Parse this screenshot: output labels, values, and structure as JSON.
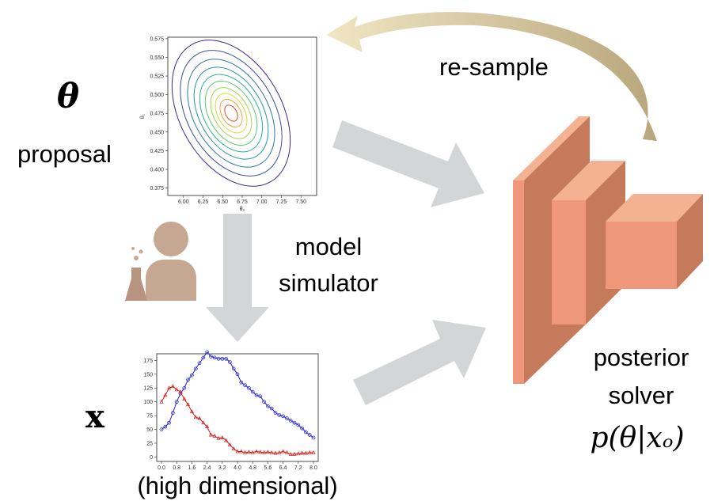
{
  "labels": {
    "theta": "θ",
    "proposal": "proposal",
    "resample": "re-sample",
    "model": "model",
    "simulator": "simulator",
    "x": "x",
    "high_dim": "(high dimensional)",
    "posterior": "posterior",
    "solver": "solver",
    "formula": "p(θ|xₒ)"
  },
  "chart_data": [
    {
      "type": "contour",
      "x_label": "θ₀",
      "y_label": "θ₁",
      "xlim": [
        5.8,
        7.7
      ],
      "ylim": [
        0.365,
        0.577
      ],
      "xticks": [
        {
          "value": 6,
          "label": "6.00"
        },
        {
          "value": 6.25,
          "label": "6.25"
        },
        {
          "value": 6.5,
          "label": "6.50"
        },
        {
          "value": 6.75,
          "label": "6.75"
        },
        {
          "value": 7,
          "label": "7.00"
        },
        {
          "value": 7.25,
          "label": "7.25"
        },
        {
          "value": 7.5,
          "label": "7.50"
        }
      ],
      "yticks": [
        {
          "value": 0.375,
          "label": "0.375"
        },
        {
          "value": 0.4,
          "label": "0.400"
        },
        {
          "value": 0.425,
          "label": "0.425"
        },
        {
          "value": 0.45,
          "label": "0.450"
        },
        {
          "value": 0.475,
          "label": "0.475"
        },
        {
          "value": 0.5,
          "label": "0.500"
        },
        {
          "value": 0.525,
          "label": "0.525"
        },
        {
          "value": 0.55,
          "label": "0.550"
        },
        {
          "value": 0.575,
          "label": "0.575"
        }
      ]
    },
    {
      "type": "line",
      "xlim": [
        -0.25,
        8.25
      ],
      "ylim": [
        -8,
        187
      ],
      "xticks": [
        {
          "value": 0,
          "label": "0.0"
        },
        0.8,
        1.6,
        2.4,
        3.2,
        {
          "value": 4,
          "label": "4.0"
        },
        4.8,
        5.6,
        6.4,
        7.2,
        {
          "value": 8,
          "label": "8.0"
        }
      ],
      "yticks": [
        0,
        25,
        50,
        75,
        100,
        125,
        150,
        175
      ],
      "x": [
        0,
        0.2,
        0.4,
        0.6,
        0.8,
        1.0,
        1.2,
        1.4,
        1.6,
        1.8,
        2.0,
        2.2,
        2.4,
        2.6,
        2.8,
        3.0,
        3.2,
        3.4,
        3.6,
        3.8,
        4.0,
        4.2,
        4.4,
        4.6,
        4.8,
        5.0,
        5.2,
        5.4,
        5.6,
        5.8,
        6.0,
        6.2,
        6.4,
        6.6,
        6.8,
        7.0,
        7.2,
        7.4,
        7.6,
        7.8,
        8.0
      ],
      "series": [
        {
          "color": "#2020d0",
          "marker": "circle",
          "values": [
            50,
            55,
            62,
            80,
            100,
            115,
            125,
            140,
            148,
            160,
            170,
            180,
            190,
            182,
            180,
            178,
            178,
            178,
            172,
            160,
            150,
            135,
            130,
            125,
            118,
            112,
            110,
            100,
            92,
            88,
            80,
            76,
            74,
            70,
            66,
            62,
            58,
            52,
            45,
            40,
            35
          ]
        },
        {
          "color": "#d02020",
          "marker": "triangle",
          "values": [
            100,
            112,
            125,
            128,
            122,
            118,
            105,
            95,
            82,
            72,
            70,
            62,
            55,
            40,
            38,
            34,
            35,
            30,
            22,
            15,
            10,
            10,
            8,
            9,
            8,
            10,
            9,
            8,
            9,
            8,
            7,
            8,
            10,
            8,
            5,
            5,
            6,
            7,
            7,
            8,
            8
          ]
        }
      ]
    }
  ]
}
